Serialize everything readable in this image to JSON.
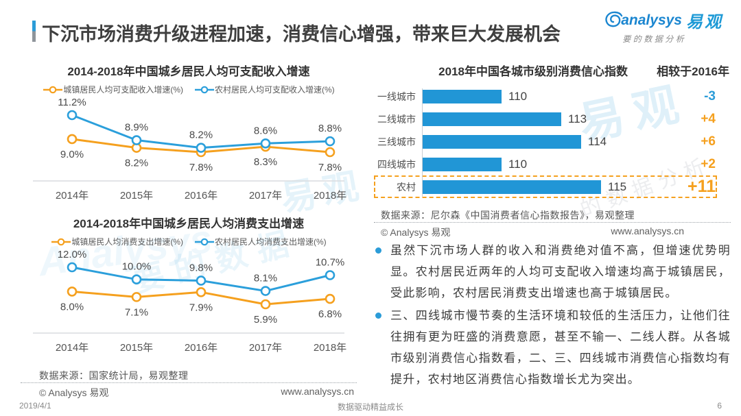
{
  "page": {
    "title": "下沉市场消费升级进程加速，消费信心增强，带来巨大发展机会",
    "footer": {
      "date": "2019/4/1",
      "slogan": "数据驱动精益成长",
      "page_number": "6"
    }
  },
  "logo": {
    "brand_en": "analysys",
    "brand_cn": "易观",
    "tagline": "要的数据分析"
  },
  "colors": {
    "line_orange": "#F5A01E",
    "line_blue": "#2B9FDB",
    "bar_blue": "#2196D6",
    "delta_orange": "#F5A01E",
    "delta_blue": "#2B9CD8",
    "highlight_dash": "#F5A01E"
  },
  "left_column": {
    "source": "数据来源：国家统计局，易观整理",
    "copyright": "© Analysys 易观",
    "website": "www.analysys.cn"
  },
  "right_column": {
    "source": "数据来源：尼尔森《中国消费者信心指数报告》，易观整理",
    "copyright": "© Analysys 易观",
    "website": "www.analysys.cn",
    "bullets": [
      "虽然下沉市场人群的收入和消费绝对值不高，但增速优势明显。农村居民近两年的人均可支配收入增速均高于城镇居民，受此影响，农村居民消费支出增速也高于城镇居民。",
      "三、四线城市慢节奏的生活环境和较低的生活压力，让他们往往拥有更为旺盛的消费意愿，甚至不输一、二线人群。从各城市级别消费信心指数看，二、三、四线城市消费信心指数均有提升，农村地区消费信心指数增长尤为突出。"
    ]
  },
  "watermarks": [
    "易观",
    "的数据分析",
    "易观",
    "要的数据",
    "Analysys"
  ],
  "chart_data": [
    {
      "id": "income-growth",
      "type": "line",
      "title": "2014-2018年中国城乡居民人均可支配收入增速",
      "categories": [
        "2014年",
        "2015年",
        "2016年",
        "2017年",
        "2018年"
      ],
      "series": [
        {
          "name": "城镇居民人均可支配收入增速(%)",
          "color": "#F5A01E",
          "values": [
            9.0,
            8.2,
            7.8,
            8.3,
            7.8
          ],
          "labels": [
            "9.0%",
            "8.2%",
            "7.8%",
            "8.3%",
            "7.8%"
          ],
          "label_position": "below"
        },
        {
          "name": "农村居民人均可支配收入增速(%)",
          "color": "#2B9FDB",
          "values": [
            11.2,
            8.9,
            8.2,
            8.6,
            8.8
          ],
          "labels": [
            "11.2%",
            "8.9%",
            "8.2%",
            "8.6%",
            "8.8%"
          ],
          "label_position": "above"
        }
      ],
      "legend_position": "top",
      "grid": false,
      "ylim": [
        7.8,
        11.2
      ]
    },
    {
      "id": "spending-growth",
      "type": "line",
      "title": "2014-2018年中国城乡居民人均消费支出增速",
      "categories": [
        "2014年",
        "2015年",
        "2016年",
        "2017年",
        "2018年"
      ],
      "series": [
        {
          "name": "城镇居民人均消费支出增速(%)",
          "color": "#F5A01E",
          "values": [
            8.0,
            7.1,
            7.9,
            5.9,
            6.8
          ],
          "labels": [
            "8.0%",
            "7.1%",
            "7.9%",
            "5.9%",
            "6.8%"
          ],
          "label_position": "below"
        },
        {
          "name": "农村居民人均消费支出增速(%)",
          "color": "#2B9FDB",
          "values": [
            12.0,
            10.0,
            9.8,
            8.1,
            10.7
          ],
          "labels": [
            "12.0%",
            "10.0%",
            "9.8%",
            "8.1%",
            "10.7%"
          ],
          "label_position": "above"
        }
      ],
      "legend_position": "top",
      "grid": false,
      "ylim": [
        5.9,
        12.0
      ]
    },
    {
      "id": "confidence-index",
      "type": "bar",
      "orientation": "horizontal",
      "title": "2018年中国各城市级别消费信心指数",
      "subtitle": "相较于2016年",
      "categories": [
        "一线城市",
        "二线城市",
        "三线城市",
        "四线城市",
        "农村"
      ],
      "values": [
        110,
        113,
        114,
        110,
        115
      ],
      "deltas": [
        "-3",
        "+4",
        "+6",
        "+2",
        "+11"
      ],
      "delta_colors": [
        "#2B9CD8",
        "#F5A01E",
        "#F5A01E",
        "#F5A01E",
        "#F5A01E"
      ],
      "highlight_index": 4,
      "xmin": 106,
      "grid": false,
      "legend_position": "none"
    }
  ]
}
